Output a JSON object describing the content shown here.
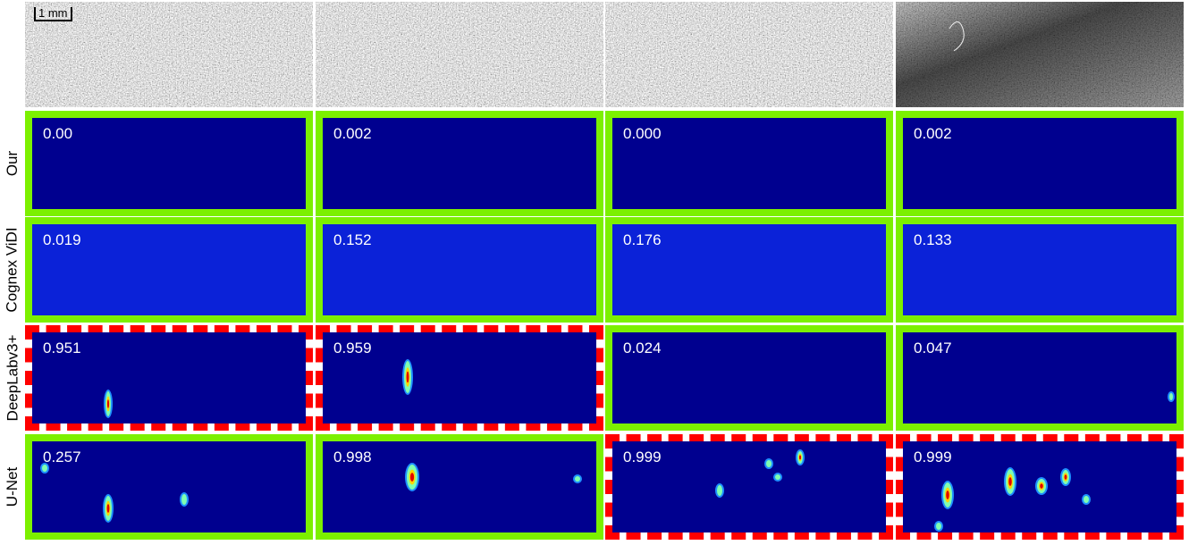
{
  "scale_bar": "1 mm",
  "rows": [
    {
      "label": "Our",
      "scores": [
        "0.00",
        "0.002",
        "0.000",
        "0.002"
      ]
    },
    {
      "label": "Cognex ViDI",
      "scores": [
        "0.019",
        "0.152",
        "0.176",
        "0.133"
      ]
    },
    {
      "label": "DeepLabv3+",
      "scores": [
        "0.951",
        "0.959",
        "0.024",
        "0.047"
      ]
    },
    {
      "label": "U-Net",
      "scores": [
        "0.257",
        "0.998",
        "0.999",
        "0.999"
      ]
    }
  ]
}
